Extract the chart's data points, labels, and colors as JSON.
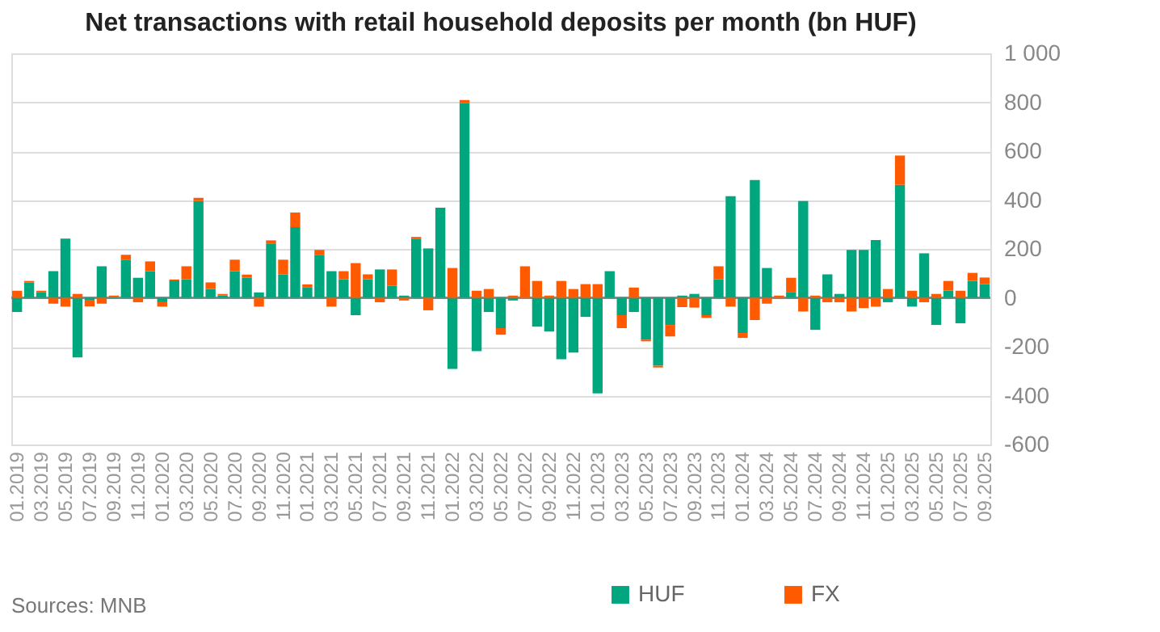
{
  "chart_data": {
    "type": "bar",
    "stacked": true,
    "title": "Net transactions with retail household deposits per month (bn HUF)",
    "annotations": [
      "Sources: MNB"
    ],
    "categories": [
      "01.2019",
      null,
      "03.2019",
      null,
      "05.2019",
      null,
      "07.2019",
      null,
      "09.2019",
      null,
      "11.2019",
      null,
      "01.2020",
      null,
      "03.2020",
      null,
      "05.2020",
      null,
      "07.2020",
      null,
      "09.2020",
      null,
      "11.2020",
      null,
      "01.2021",
      null,
      "03.2021",
      null,
      "05.2021",
      null,
      "07.2021",
      null,
      "09.2021",
      null,
      "11.2021",
      null,
      "01.2022",
      null,
      "03.2022",
      null,
      "05.2022",
      null,
      "07.2022",
      null,
      "09.2022",
      null,
      "11.2022",
      null,
      "01.2023",
      null,
      "03.2023",
      null,
      "05.2023",
      null,
      "07.2023",
      null,
      "09.2023",
      null,
      "11.2023",
      null,
      "01.2024",
      null,
      "03.2024",
      null,
      "05.2024",
      null,
      "07.2024",
      null,
      "09.2024",
      null,
      "11.2024",
      null,
      "01.2025",
      null,
      "03.2025",
      null,
      "05.2025",
      null,
      "07.2025",
      null,
      "09.2025"
    ],
    "series": [
      {
        "name": "HUF",
        "color": "#00a67e",
        "values": [
          -58,
          62,
          22,
          109,
          242,
          -244,
          -11,
          129,
          2,
          156,
          82,
          109,
          -18,
          71,
          76,
          396,
          36,
          9,
          109,
          82,
          22,
          222,
          96,
          289,
          42,
          176,
          109,
          76,
          -71,
          76,
          116,
          49,
          9,
          242,
          202,
          369,
          -291,
          796,
          -218,
          -58,
          -124,
          -11,
          0,
          -118,
          -138,
          -251,
          -224,
          -78,
          -391,
          109,
          -71,
          -58,
          -171,
          -278,
          -111,
          9,
          16,
          -71,
          76,
          416,
          -144,
          482,
          122,
          0,
          22,
          396,
          -131,
          96,
          16,
          196,
          196,
          236,
          -18,
          462,
          -36,
          182,
          -111,
          29,
          -104,
          69,
          56
        ]
      },
      {
        "name": "FX",
        "color": "#ff5a00",
        "values": [
          29,
          7,
          7,
          -24,
          -36,
          16,
          -24,
          -24,
          7,
          20,
          -18,
          40,
          -18,
          4,
          53,
          13,
          27,
          7,
          47,
          13,
          -36,
          13,
          60,
          60,
          13,
          20,
          -36,
          33,
          142,
          20,
          -18,
          67,
          -11,
          7,
          -51,
          0,
          122,
          13,
          29,
          36,
          -27,
          9,
          129,
          69,
          9,
          69,
          36,
          56,
          56,
          0,
          -53,
          42,
          -7,
          -7,
          -47,
          -38,
          -40,
          -11,
          53,
          -36,
          -20,
          -91,
          -24,
          9,
          60,
          -56,
          9,
          -18,
          -18,
          -56,
          -42,
          -36,
          36,
          120,
          29,
          -18,
          16,
          40,
          29,
          33,
          27
        ]
      }
    ],
    "ylim": [
      -600,
      1000
    ],
    "yticks": [
      -600,
      -400,
      -200,
      0,
      200,
      400,
      600,
      800,
      {
        "value": 1000,
        "label": "1 000"
      }
    ],
    "grid": "y",
    "legend": "bottom",
    "ref_lines": [
      {
        "axis": "y",
        "value": 0,
        "color": "#888888"
      }
    ]
  }
}
